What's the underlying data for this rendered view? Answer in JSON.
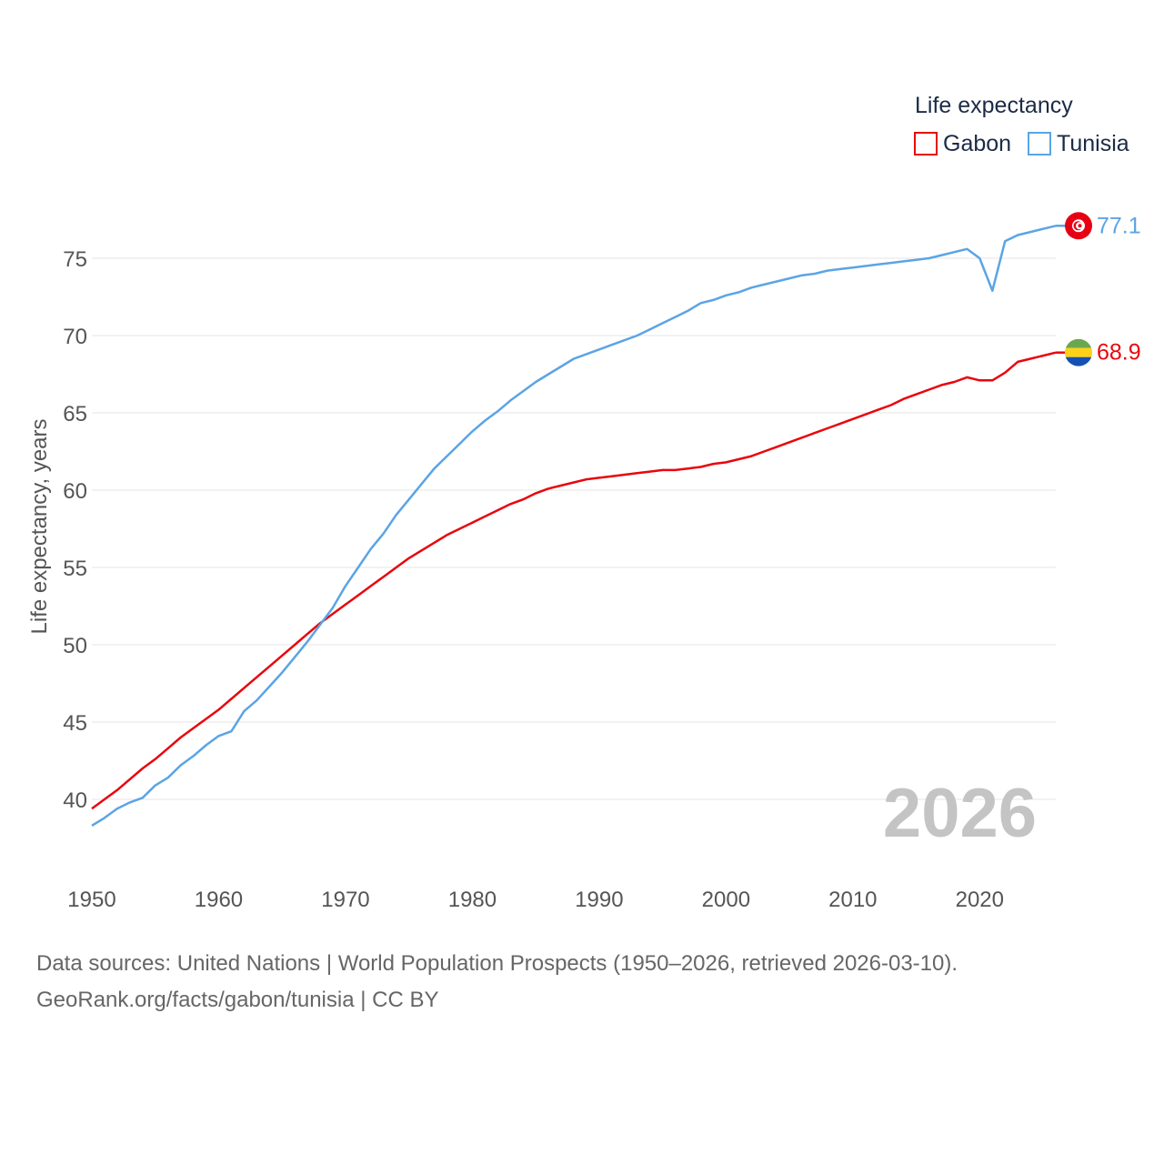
{
  "chart_data": {
    "type": "line",
    "legend_title": "Life expectancy",
    "ylabel": "Life expectancy, years",
    "xlabel": "",
    "xlim": [
      1950,
      2026
    ],
    "ylim": [
      37,
      79
    ],
    "x_ticks": [
      1950,
      1960,
      1970,
      1980,
      1990,
      2000,
      2010,
      2020
    ],
    "y_ticks": [
      40,
      45,
      50,
      55,
      60,
      65,
      70,
      75
    ],
    "year_watermark": "2026",
    "series": [
      {
        "name": "Gabon",
        "color": "#e8060d",
        "end_label": "68.9",
        "flag": "gabon-flag",
        "points": [
          [
            1950,
            39.4
          ],
          [
            1951,
            40.0
          ],
          [
            1952,
            40.6
          ],
          [
            1953,
            41.3
          ],
          [
            1954,
            42.0
          ],
          [
            1955,
            42.6
          ],
          [
            1956,
            43.3
          ],
          [
            1957,
            44.0
          ],
          [
            1958,
            44.6
          ],
          [
            1959,
            45.2
          ],
          [
            1960,
            45.8
          ],
          [
            1961,
            46.5
          ],
          [
            1962,
            47.2
          ],
          [
            1963,
            47.9
          ],
          [
            1964,
            48.6
          ],
          [
            1965,
            49.3
          ],
          [
            1966,
            50.0
          ],
          [
            1967,
            50.7
          ],
          [
            1968,
            51.4
          ],
          [
            1969,
            52.0
          ],
          [
            1970,
            52.6
          ],
          [
            1971,
            53.2
          ],
          [
            1972,
            53.8
          ],
          [
            1973,
            54.4
          ],
          [
            1974,
            55.0
          ],
          [
            1975,
            55.6
          ],
          [
            1976,
            56.1
          ],
          [
            1977,
            56.6
          ],
          [
            1978,
            57.1
          ],
          [
            1979,
            57.5
          ],
          [
            1980,
            57.9
          ],
          [
            1981,
            58.3
          ],
          [
            1982,
            58.7
          ],
          [
            1983,
            59.1
          ],
          [
            1984,
            59.4
          ],
          [
            1985,
            59.8
          ],
          [
            1986,
            60.1
          ],
          [
            1987,
            60.3
          ],
          [
            1988,
            60.5
          ],
          [
            1989,
            60.7
          ],
          [
            1990,
            60.8
          ],
          [
            1991,
            60.9
          ],
          [
            1992,
            61.0
          ],
          [
            1993,
            61.1
          ],
          [
            1994,
            61.2
          ],
          [
            1995,
            61.3
          ],
          [
            1996,
            61.3
          ],
          [
            1997,
            61.4
          ],
          [
            1998,
            61.5
          ],
          [
            1999,
            61.7
          ],
          [
            2000,
            61.8
          ],
          [
            2001,
            62.0
          ],
          [
            2002,
            62.2
          ],
          [
            2003,
            62.5
          ],
          [
            2004,
            62.8
          ],
          [
            2005,
            63.1
          ],
          [
            2006,
            63.4
          ],
          [
            2007,
            63.7
          ],
          [
            2008,
            64.0
          ],
          [
            2009,
            64.3
          ],
          [
            2010,
            64.6
          ],
          [
            2011,
            64.9
          ],
          [
            2012,
            65.2
          ],
          [
            2013,
            65.5
          ],
          [
            2014,
            65.9
          ],
          [
            2015,
            66.2
          ],
          [
            2016,
            66.5
          ],
          [
            2017,
            66.8
          ],
          [
            2018,
            67.0
          ],
          [
            2019,
            67.3
          ],
          [
            2020,
            67.1
          ],
          [
            2021,
            67.1
          ],
          [
            2022,
            67.6
          ],
          [
            2023,
            68.3
          ],
          [
            2024,
            68.5
          ],
          [
            2025,
            68.7
          ],
          [
            2026,
            68.9
          ]
        ]
      },
      {
        "name": "Tunisia",
        "color": "#5ba4e5",
        "end_label": "77.1",
        "flag": "tunisia-flag",
        "points": [
          [
            1950,
            38.3
          ],
          [
            1951,
            38.8
          ],
          [
            1952,
            39.4
          ],
          [
            1953,
            39.8
          ],
          [
            1954,
            40.1
          ],
          [
            1955,
            40.9
          ],
          [
            1956,
            41.4
          ],
          [
            1957,
            42.2
          ],
          [
            1958,
            42.8
          ],
          [
            1959,
            43.5
          ],
          [
            1960,
            44.1
          ],
          [
            1961,
            44.4
          ],
          [
            1962,
            45.7
          ],
          [
            1963,
            46.4
          ],
          [
            1964,
            47.3
          ],
          [
            1965,
            48.2
          ],
          [
            1966,
            49.2
          ],
          [
            1967,
            50.2
          ],
          [
            1968,
            51.3
          ],
          [
            1969,
            52.4
          ],
          [
            1970,
            53.8
          ],
          [
            1971,
            55.0
          ],
          [
            1972,
            56.2
          ],
          [
            1973,
            57.2
          ],
          [
            1974,
            58.4
          ],
          [
            1975,
            59.4
          ],
          [
            1976,
            60.4
          ],
          [
            1977,
            61.4
          ],
          [
            1978,
            62.2
          ],
          [
            1979,
            63.0
          ],
          [
            1980,
            63.8
          ],
          [
            1981,
            64.5
          ],
          [
            1982,
            65.1
          ],
          [
            1983,
            65.8
          ],
          [
            1984,
            66.4
          ],
          [
            1985,
            67.0
          ],
          [
            1986,
            67.5
          ],
          [
            1987,
            68.0
          ],
          [
            1988,
            68.5
          ],
          [
            1989,
            68.8
          ],
          [
            1990,
            69.1
          ],
          [
            1991,
            69.4
          ],
          [
            1992,
            69.7
          ],
          [
            1993,
            70.0
          ],
          [
            1994,
            70.4
          ],
          [
            1995,
            70.8
          ],
          [
            1996,
            71.2
          ],
          [
            1997,
            71.6
          ],
          [
            1998,
            72.1
          ],
          [
            1999,
            72.3
          ],
          [
            2000,
            72.6
          ],
          [
            2001,
            72.8
          ],
          [
            2002,
            73.1
          ],
          [
            2003,
            73.3
          ],
          [
            2004,
            73.5
          ],
          [
            2005,
            73.7
          ],
          [
            2006,
            73.9
          ],
          [
            2007,
            74.0
          ],
          [
            2008,
            74.2
          ],
          [
            2009,
            74.3
          ],
          [
            2010,
            74.4
          ],
          [
            2011,
            74.5
          ],
          [
            2012,
            74.6
          ],
          [
            2013,
            74.7
          ],
          [
            2014,
            74.8
          ],
          [
            2015,
            74.9
          ],
          [
            2016,
            75.0
          ],
          [
            2017,
            75.2
          ],
          [
            2018,
            75.4
          ],
          [
            2019,
            75.6
          ],
          [
            2020,
            75.0
          ],
          [
            2021,
            72.9
          ],
          [
            2022,
            76.1
          ],
          [
            2023,
            76.5
          ],
          [
            2024,
            76.7
          ],
          [
            2025,
            76.9
          ],
          [
            2026,
            77.1
          ]
        ]
      }
    ]
  },
  "footer": {
    "line1": "Data sources: United Nations | World Population Prospects (1950–2026, retrieved 2026-03-10).",
    "line2": "GeoRank.org/facts/gabon/tunisia | CC BY"
  }
}
